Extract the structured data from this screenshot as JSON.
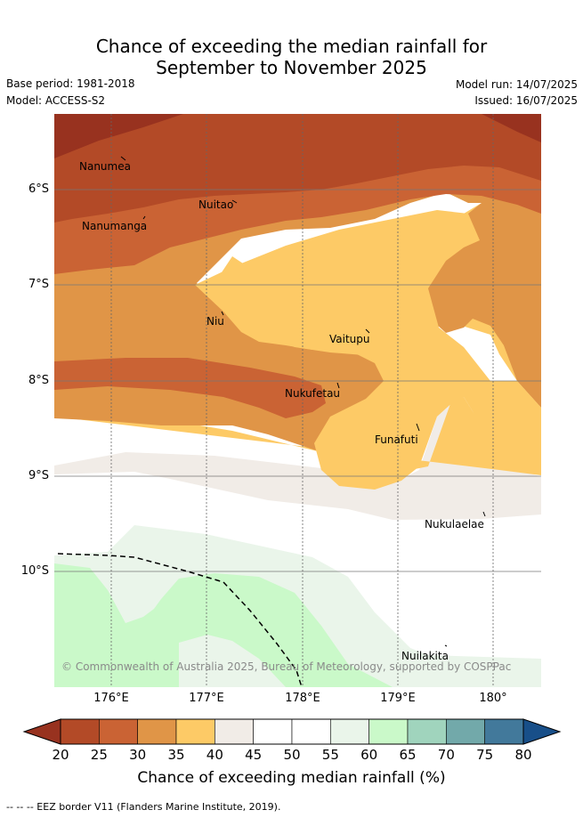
{
  "title": {
    "line1": "Chance of exceeding the median rainfall for",
    "line2": "September to November 2025"
  },
  "meta": {
    "base_period": "Base period: 1981-2018",
    "model": "Model: ACCESS-S2",
    "model_run": "Model run: 14/07/2025",
    "issued": "Issued: 16/07/2025"
  },
  "map": {
    "lat_labels": [
      "6°S",
      "7°S",
      "8°S",
      "9°S",
      "10°S"
    ],
    "lon_labels": [
      "176°E",
      "177°E",
      "178°E",
      "179°E",
      "180°"
    ],
    "places": [
      {
        "name": "Nanumea"
      },
      {
        "name": "Nuitao"
      },
      {
        "name": "Nanumanga"
      },
      {
        "name": "Niu"
      },
      {
        "name": "Vaitupu"
      },
      {
        "name": "Nukufetau"
      },
      {
        "name": "Funafuti"
      },
      {
        "name": "Nukulaelae"
      },
      {
        "name": "Nuilakita"
      }
    ],
    "copyright": "© Commonwealth of Australia 2025, Bureau of Meteorology, supported by COSPPac"
  },
  "colorbar": {
    "title": "Chance of exceeding median rainfall (%)",
    "ticks": [
      "20",
      "25",
      "30",
      "35",
      "40",
      "45",
      "50",
      "55",
      "60",
      "65",
      "70",
      "75",
      "80"
    ],
    "low_extend_color": "#98321f",
    "high_extend_color": "#184f89",
    "bin_colors": [
      "#b34a27",
      "#ca6334",
      "#e09547",
      "#fdca66",
      "#f1ece7",
      "#ffffff",
      "#ffffff",
      "#eaf5ea",
      "#caf9c9",
      "#a0d4bd",
      "#72a9aa",
      "#42799b"
    ]
  },
  "footer": "-- -- -- EEZ border V11 (Flanders Marine Institute, 2019)."
}
